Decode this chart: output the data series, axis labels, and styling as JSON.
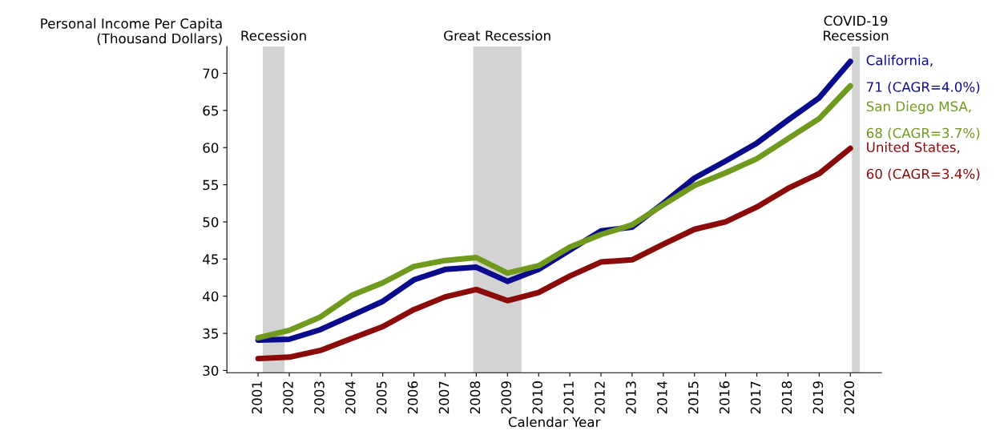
{
  "chart_data": {
    "type": "line",
    "ylabel": "Personal Income Per Capita\n(Thousand Dollars)",
    "xlabel": "Calendar Year",
    "x": [
      2001,
      2002,
      2003,
      2004,
      2005,
      2006,
      2007,
      2008,
      2009,
      2010,
      2011,
      2012,
      2013,
      2014,
      2015,
      2016,
      2017,
      2018,
      2019,
      2020
    ],
    "series": [
      {
        "name": "California,",
        "color": "#0a0a8c",
        "values": [
          34.1,
          34.2,
          35.5,
          37.4,
          39.3,
          42.2,
          43.6,
          43.9,
          42.0,
          43.6,
          46.2,
          48.8,
          49.3,
          52.5,
          55.9,
          58.2,
          60.6,
          63.7,
          66.7,
          71.6
        ]
      },
      {
        "name": "San Diego MSA,",
        "color": "#6f9a1e",
        "values": [
          34.4,
          35.4,
          37.2,
          40.1,
          41.8,
          44.0,
          44.8,
          45.2,
          43.1,
          44.1,
          46.6,
          48.3,
          49.6,
          52.3,
          54.9,
          56.6,
          58.5,
          61.2,
          63.9,
          68.3
        ]
      },
      {
        "name": "United States,",
        "color": "#8b0a0a",
        "values": [
          31.6,
          31.8,
          32.7,
          34.3,
          35.9,
          38.2,
          39.9,
          40.9,
          39.4,
          40.5,
          42.7,
          44.6,
          44.9,
          47.0,
          49.0,
          50.0,
          52.0,
          54.5,
          56.5,
          59.9
        ]
      }
    ],
    "annotations": [
      "71 (CAGR=4.0%)",
      "68 (CAGR=3.7%)",
      "60 (CAGR=3.4%)"
    ],
    "bands": [
      {
        "axis": "x",
        "from": 2001.15,
        "to": 2001.85,
        "label": "Recession",
        "color": "#d3d3d3"
      },
      {
        "axis": "x",
        "from": 2007.9,
        "to": 2009.45,
        "label": "Great Recession",
        "color": "#d3d3d3"
      },
      {
        "axis": "x",
        "from": 2020.05,
        "to": 2020.3,
        "label": "COVID-19\nRecession",
        "color": "#d3d3d3"
      }
    ],
    "xlim": [
      2000,
      2021
    ],
    "xticks": [
      2001,
      2002,
      2003,
      2004,
      2005,
      2006,
      2007,
      2008,
      2009,
      2010,
      2011,
      2012,
      2013,
      2014,
      2015,
      2016,
      2017,
      2018,
      2019,
      2020
    ],
    "ylim": [
      29.7,
      73.6
    ],
    "yticks": [
      30,
      35,
      40,
      45,
      50,
      55,
      60,
      65,
      70
    ],
    "grid": false,
    "legend": false,
    "line_style": "solid",
    "marker": "none"
  }
}
